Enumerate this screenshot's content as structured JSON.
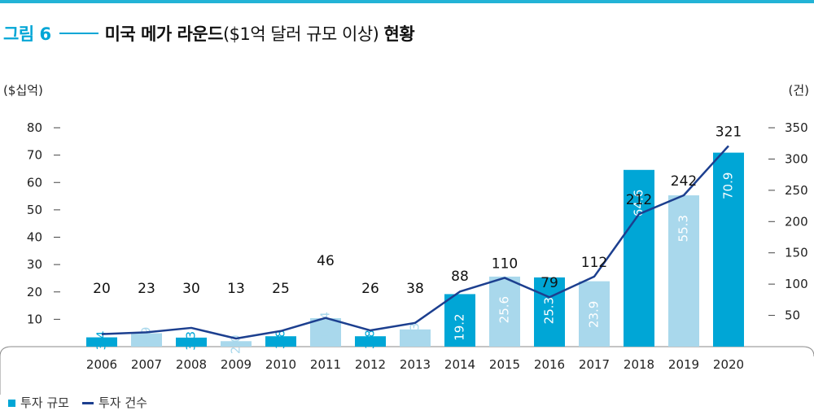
{
  "figure": {
    "number": "그림 6",
    "title_main": "미국 메가 라운드",
    "title_sub": "($1억 달러 규모 이상)",
    "title_tail": "현황"
  },
  "units": {
    "left": "($십억)",
    "right": "(건)"
  },
  "legend": {
    "bar": "투자 규모",
    "line": "투자 건수"
  },
  "colors": {
    "accent": "#00a6d6",
    "bar_dark": "#00a6d6",
    "bar_light": "#a9d8ec",
    "line": "#1c3f8f",
    "rule": "#22b3d6"
  },
  "chart_data": {
    "type": "bar",
    "categories": [
      "2006",
      "2007",
      "2008",
      "2009",
      "2010",
      "2011",
      "2012",
      "2013",
      "2014",
      "2015",
      "2016",
      "2017",
      "2018",
      "2019",
      "2020"
    ],
    "bar_values": [
      3.4,
      4.9,
      3.3,
      2.0,
      3.8,
      10.4,
      3.8,
      6.3,
      19.2,
      25.6,
      25.3,
      23.9,
      64.6,
      55.3,
      70.9
    ],
    "bar_shade": [
      "dark",
      "light",
      "dark",
      "light",
      "dark",
      "light",
      "dark",
      "light",
      "dark",
      "light",
      "dark",
      "light",
      "dark",
      "light",
      "dark"
    ],
    "line_values": [
      20,
      23,
      30,
      13,
      25,
      46,
      26,
      38,
      88,
      110,
      79,
      112,
      212,
      242,
      321
    ],
    "y_left_ticks": [
      10,
      20,
      30,
      40,
      50,
      60,
      70,
      80
    ],
    "y_right_ticks": [
      50,
      100,
      150,
      200,
      250,
      300,
      350
    ],
    "y_left_range": [
      0,
      80
    ],
    "y_right_range": [
      0,
      350
    ]
  }
}
